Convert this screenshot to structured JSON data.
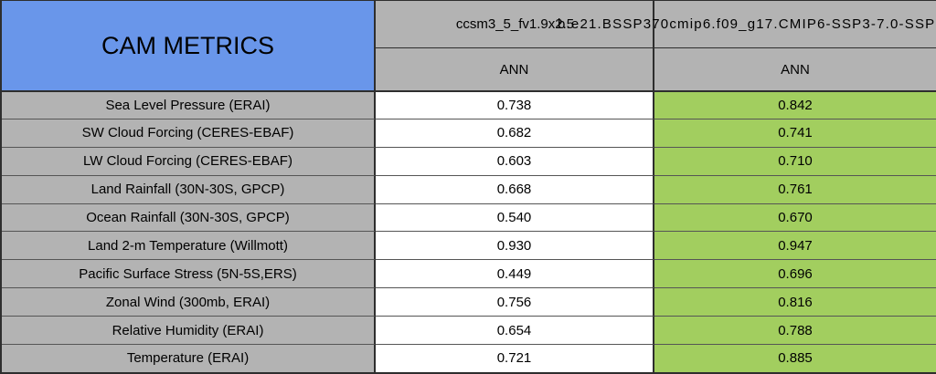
{
  "title": "CAM METRICS",
  "header": {
    "col1_model": "ccsm3_5_fv1.9x2.5",
    "col2_model": "b.e21.BSSP370cmip6.f09_g17.CMIP6-SSP3-7.0-SSP",
    "col1_season": "ANN",
    "col2_season": "ANN"
  },
  "rows": [
    {
      "label": "Sea Level Pressure (ERAI)",
      "v1": "0.738",
      "v2": "0.842"
    },
    {
      "label": "SW Cloud Forcing (CERES-EBAF)",
      "v1": "0.682",
      "v2": "0.741"
    },
    {
      "label": "LW Cloud Forcing (CERES-EBAF)",
      "v1": "0.603",
      "v2": "0.710"
    },
    {
      "label": "Land Rainfall (30N-30S, GPCP)",
      "v1": "0.668",
      "v2": "0.761"
    },
    {
      "label": "Ocean Rainfall (30N-30S, GPCP)",
      "v1": "0.540",
      "v2": "0.670"
    },
    {
      "label": "Land 2-m Temperature (Willmott)",
      "v1": "0.930",
      "v2": "0.947"
    },
    {
      "label": "Pacific Surface Stress (5N-5S,ERS)",
      "v1": "0.449",
      "v2": "0.696"
    },
    {
      "label": "Zonal Wind (300mb, ERAI)",
      "v1": "0.756",
      "v2": "0.816"
    },
    {
      "label": "Relative Humidity (ERAI)",
      "v1": "0.654",
      "v2": "0.788"
    },
    {
      "label": "Temperature (ERAI)",
      "v1": "0.721",
      "v2": "0.885"
    }
  ],
  "colors": {
    "title_cell_blue": "#6996ea",
    "header_gray": "#b3b3b3",
    "col1_value_bg": "#ffffff",
    "col2_value_green": "#a2ce5f",
    "border_dark": "#2e2e2e"
  },
  "chart_data": {
    "type": "table",
    "title": "CAM METRICS",
    "categories": [
      "Sea Level Pressure (ERAI)",
      "SW Cloud Forcing (CERES-EBAF)",
      "LW Cloud Forcing (CERES-EBAF)",
      "Land Rainfall (30N-30S, GPCP)",
      "Ocean Rainfall (30N-30S, GPCP)",
      "Land 2-m Temperature (Willmott)",
      "Pacific Surface Stress (5N-5S,ERS)",
      "Zonal Wind (300mb, ERAI)",
      "Relative Humidity (ERAI)",
      "Temperature (ERAI)"
    ],
    "series": [
      {
        "name": "ccsm3_5_fv1.9x2.5",
        "season": "ANN",
        "values": [
          0.738,
          0.682,
          0.603,
          0.668,
          0.54,
          0.93,
          0.449,
          0.756,
          0.654,
          0.721
        ],
        "cell_background": "#ffffff"
      },
      {
        "name": "b.e21.BSSP370cmip6.f09_g17.CMIP6-SSP3-7.0-SSP",
        "season": "ANN",
        "values": [
          0.842,
          0.741,
          0.71,
          0.761,
          0.67,
          0.947,
          0.696,
          0.816,
          0.788,
          0.885
        ],
        "cell_background": "#a2ce5f"
      }
    ],
    "layout": {
      "second_model_name_truncated_at_right_edge": true,
      "higher_scoring_column_highlighted_green": true
    }
  }
}
